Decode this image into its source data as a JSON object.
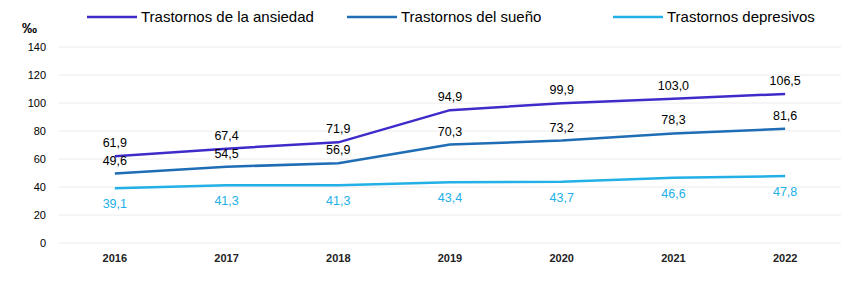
{
  "chart_data": {
    "type": "line",
    "y_label": "‰",
    "categories": [
      "2016",
      "2017",
      "2018",
      "2019",
      "2020",
      "2021",
      "2022"
    ],
    "series": [
      {
        "name": "Trastornos de la ansiedad",
        "color": "#3f2bc9",
        "values": [
          61.9,
          67.4,
          71.9,
          94.9,
          99.9,
          103.0,
          106.5
        ],
        "value_labels": [
          "61,9",
          "67,4",
          "71,9",
          "94,9",
          "99,9",
          "103,0",
          "106,5"
        ]
      },
      {
        "name": "Trastornos del sueño",
        "color": "#1f6db4",
        "values": [
          49.6,
          54.5,
          56.9,
          70.3,
          73.2,
          78.3,
          81.6
        ],
        "value_labels": [
          "49,6",
          "54,5",
          "56,9",
          "70,3",
          "73,2",
          "78,3",
          "81,6"
        ]
      },
      {
        "name": "Trastornos depresivos",
        "color": "#22b0e6",
        "values": [
          39.1,
          41.3,
          41.3,
          43.4,
          43.7,
          46.6,
          47.8
        ],
        "value_labels": [
          "39,1",
          "41,3",
          "41,3",
          "43,4",
          "43,7",
          "46,6",
          "47,8"
        ]
      }
    ],
    "ylim": [
      0,
      140
    ],
    "yticks": [
      0,
      20,
      40,
      60,
      80,
      100,
      120,
      140
    ],
    "grid": true,
    "legend": "top",
    "data_labels": true
  }
}
